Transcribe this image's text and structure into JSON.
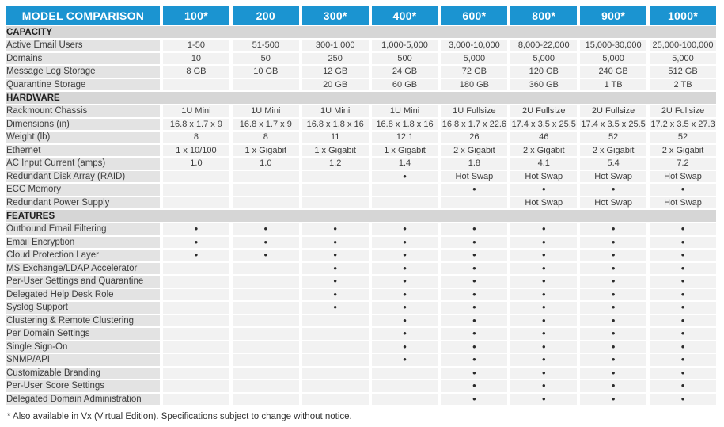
{
  "header": {
    "title": "MODEL COMPARISON",
    "models": [
      "100*",
      "200",
      "300*",
      "400*",
      "600*",
      "800*",
      "900*",
      "1000*"
    ]
  },
  "sections": [
    {
      "name": "CAPACITY",
      "rows": [
        {
          "label": "Active Email Users",
          "values": [
            "1-50",
            "51-500",
            "300-1,000",
            "1,000-5,000",
            "3,000-10,000",
            "8,000-22,000",
            "15,000-30,000",
            "25,000-100,000"
          ]
        },
        {
          "label": "Domains",
          "values": [
            "10",
            "50",
            "250",
            "500",
            "5,000",
            "5,000",
            "5,000",
            "5,000"
          ]
        },
        {
          "label": "Message Log Storage",
          "values": [
            "8 GB",
            "10 GB",
            "12 GB",
            "24 GB",
            "72 GB",
            "120 GB",
            "240 GB",
            "512 GB"
          ]
        },
        {
          "label": "Quarantine Storage",
          "values": [
            "",
            "",
            "20 GB",
            "60 GB",
            "180 GB",
            "360 GB",
            "1 TB",
            "2 TB"
          ]
        }
      ]
    },
    {
      "name": "HARDWARE",
      "rows": [
        {
          "label": "Rackmount Chassis",
          "values": [
            "1U Mini",
            "1U Mini",
            "1U Mini",
            "1U Mini",
            "1U Fullsize",
            "2U Fullsize",
            "2U Fullsize",
            "2U Fullsize"
          ]
        },
        {
          "label": "Dimensions (in)",
          "values": [
            "16.8 x 1.7 x 9",
            "16.8 x 1.7 x 9",
            "16.8 x 1.8 x 16",
            "16.8 x 1.8 x 16",
            "16.8 x 1.7 x 22.6",
            "17.4 x 3.5 x 25.5",
            "17.4 x 3.5 x 25.5",
            "17.2 x 3.5 x 27.3"
          ]
        },
        {
          "label": "Weight (lb)",
          "values": [
            "8",
            "8",
            "11",
            "12.1",
            "26",
            "46",
            "52",
            "52"
          ]
        },
        {
          "label": "Ethernet",
          "values": [
            "1 x 10/100",
            "1 x Gigabit",
            "1 x Gigabit",
            "1 x Gigabit",
            "2 x Gigabit",
            "2 x Gigabit",
            "2 x Gigabit",
            "2 x Gigabit"
          ]
        },
        {
          "label": "AC Input Current (amps)",
          "values": [
            "1.0",
            "1.0",
            "1.2",
            "1.4",
            "1.8",
            "4.1",
            "5.4",
            "7.2"
          ]
        },
        {
          "label": "Redundant Disk Array (RAID)",
          "values": [
            "",
            "",
            "",
            "•",
            "Hot Swap",
            "Hot Swap",
            "Hot Swap",
            "Hot Swap"
          ]
        },
        {
          "label": "ECC Memory",
          "values": [
            "",
            "",
            "",
            "",
            "•",
            "•",
            "•",
            "•"
          ]
        },
        {
          "label": "Redundant Power Supply",
          "values": [
            "",
            "",
            "",
            "",
            "",
            "Hot Swap",
            "Hot Swap",
            "Hot Swap"
          ]
        }
      ]
    },
    {
      "name": "FEATURES",
      "rows": [
        {
          "label": "Outbound Email Filtering",
          "values": [
            "•",
            "•",
            "•",
            "•",
            "•",
            "•",
            "•",
            "•"
          ]
        },
        {
          "label": "Email Encryption",
          "values": [
            "•",
            "•",
            "•",
            "•",
            "•",
            "•",
            "•",
            "•"
          ]
        },
        {
          "label": "Cloud Protection Layer",
          "values": [
            "•",
            "•",
            "•",
            "•",
            "•",
            "•",
            "•",
            "•"
          ]
        },
        {
          "label": "MS Exchange/LDAP Accelerator",
          "values": [
            "",
            "",
            "•",
            "•",
            "•",
            "•",
            "•",
            "•"
          ]
        },
        {
          "label": "Per-User Settings and Quarantine",
          "values": [
            "",
            "",
            "•",
            "•",
            "•",
            "•",
            "•",
            "•"
          ]
        },
        {
          "label": "Delegated Help Desk Role",
          "values": [
            "",
            "",
            "•",
            "•",
            "•",
            "•",
            "•",
            "•"
          ]
        },
        {
          "label": "Syslog Support",
          "values": [
            "",
            "",
            "•",
            "•",
            "•",
            "•",
            "•",
            "•"
          ]
        },
        {
          "label": "Clustering & Remote Clustering",
          "values": [
            "",
            "",
            "",
            "•",
            "•",
            "•",
            "•",
            "•"
          ]
        },
        {
          "label": "Per Domain Settings",
          "values": [
            "",
            "",
            "",
            "•",
            "•",
            "•",
            "•",
            "•"
          ]
        },
        {
          "label": "Single Sign-On",
          "values": [
            "",
            "",
            "",
            "•",
            "•",
            "•",
            "•",
            "•"
          ]
        },
        {
          "label": "SNMP/API",
          "values": [
            "",
            "",
            "",
            "•",
            "•",
            "•",
            "•",
            "•"
          ]
        },
        {
          "label": "Customizable Branding",
          "values": [
            "",
            "",
            "",
            "",
            "•",
            "•",
            "•",
            "•"
          ]
        },
        {
          "label": "Per-User Score Settings",
          "values": [
            "",
            "",
            "",
            "",
            "•",
            "•",
            "•",
            "•"
          ]
        },
        {
          "label": "Delegated Domain Administration",
          "values": [
            "",
            "",
            "",
            "",
            "•",
            "•",
            "•",
            "•"
          ]
        }
      ]
    }
  ],
  "footnote": "* Also available in Vx (Virtual Edition). Specifications subject to change without notice.",
  "colors": {
    "header_blue": "#1b94d1",
    "section_band": "#d6d6d6",
    "label_cell": "#e3e3e3",
    "value_cell": "#f2f2f2",
    "bullet": "#2b2b2b"
  }
}
